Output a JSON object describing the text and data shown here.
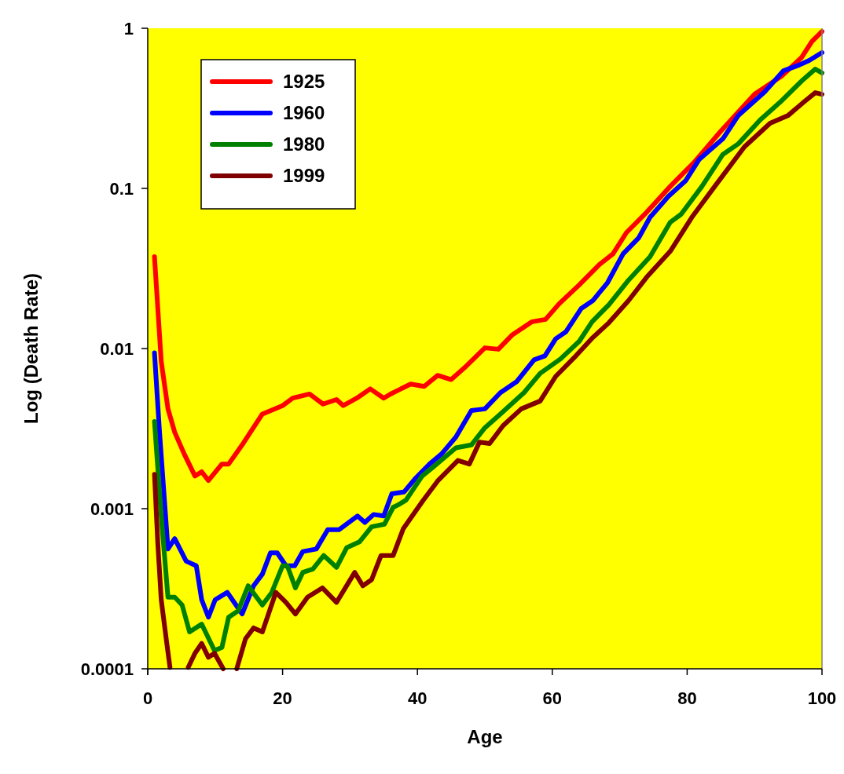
{
  "chart_data": {
    "type": "line",
    "xlabel": "Age",
    "ylabel": "Log (Death Rate)",
    "log": "y",
    "xlim": [
      0,
      100
    ],
    "xticks": [
      0,
      20,
      40,
      60,
      80,
      100
    ],
    "ylim": [
      0.0001,
      1
    ],
    "yticks": [
      0.0001,
      0.001,
      0.01,
      0.1,
      1
    ],
    "grid": false,
    "legend": "top left",
    "marker": "none",
    "line_style": "solid",
    "series": [
      {
        "name": "1925",
        "color": "#ff0000",
        "x": [
          1,
          2,
          3,
          4,
          5.4,
          7,
          8,
          9,
          11,
          12,
          14,
          15,
          17,
          20,
          21.5,
          24,
          26,
          28,
          29,
          31,
          33,
          35,
          36,
          39,
          41,
          43,
          45,
          47,
          50,
          52,
          54,
          57,
          59,
          61,
          64,
          67,
          69,
          71,
          74,
          77.5,
          81,
          85,
          90,
          94,
          97,
          98.5,
          100
        ],
        "values": [
          0.0375,
          0.0083,
          0.0042,
          0.003,
          0.0022,
          0.0016,
          0.0017,
          0.0015,
          0.0019,
          0.0019,
          0.0025,
          0.0029,
          0.0039,
          0.0044,
          0.0049,
          0.0052,
          0.0045,
          0.0048,
          0.0044,
          0.0049,
          0.0056,
          0.0049,
          0.0052,
          0.006,
          0.0058,
          0.0068,
          0.0064,
          0.0076,
          0.0101,
          0.0099,
          0.0121,
          0.0147,
          0.0152,
          0.019,
          0.025,
          0.0335,
          0.039,
          0.053,
          0.071,
          0.103,
          0.145,
          0.228,
          0.387,
          0.502,
          0.659,
          0.826,
          0.955
        ]
      },
      {
        "name": "1960",
        "color": "#0000ff",
        "x": [
          1,
          1.75,
          3,
          4,
          5.7,
          7.2,
          8,
          9,
          10,
          11.8,
          14,
          15.7,
          17,
          18.2,
          19.2,
          20.5,
          21.8,
          23,
          25,
          26.7,
          28.4,
          31.1,
          32.2,
          33.5,
          35,
          36.2,
          38,
          39.6,
          41.8,
          43.6,
          45.7,
          48,
          50,
          52.3,
          54.7,
          57.3,
          58.9,
          60.5,
          62,
          64.3,
          66,
          68.2,
          70.5,
          72.8,
          74.5,
          77.2,
          79.8,
          81.8,
          85.3,
          87.6,
          91.5,
          94.3,
          96.6,
          98.1,
          100
        ],
        "values": [
          0.0094,
          0.003,
          0.00056,
          0.00065,
          0.00047,
          0.00044,
          0.00027,
          0.00021,
          0.00027,
          0.0003,
          0.00022,
          0.00033,
          0.00039,
          0.00053,
          0.00053,
          0.00044,
          0.00044,
          0.00054,
          0.00056,
          0.00074,
          0.00074,
          0.0009,
          0.00082,
          0.00092,
          0.0009,
          0.00124,
          0.00127,
          0.00153,
          0.0019,
          0.0022,
          0.0028,
          0.0041,
          0.0042,
          0.0053,
          0.0062,
          0.0085,
          0.009,
          0.0115,
          0.0127,
          0.0178,
          0.0199,
          0.0258,
          0.039,
          0.049,
          0.066,
          0.089,
          0.112,
          0.152,
          0.204,
          0.286,
          0.401,
          0.543,
          0.589,
          0.63,
          0.705
        ]
      },
      {
        "name": "1980",
        "color": "#008000",
        "x": [
          1,
          2,
          3,
          4,
          5.1,
          6.2,
          8,
          9.9,
          11,
          12,
          13.4,
          14.9,
          17,
          18.4,
          20,
          20.7,
          21.9,
          23,
          24.5,
          26.1,
          28,
          29.5,
          31.4,
          33.2,
          35.1,
          36.4,
          37.2,
          38.3,
          40.7,
          42.2,
          45.7,
          48,
          50,
          52.3,
          55.8,
          58.2,
          61.2,
          64,
          65.9,
          68.4,
          71.3,
          74.5,
          77.5,
          79.1,
          82.2,
          85.3,
          87.6,
          90.8,
          93.8,
          97,
          99,
          100
        ],
        "values": [
          0.0035,
          0.0009,
          0.00028,
          0.00028,
          0.00025,
          0.00017,
          0.00019,
          0.00013,
          0.000136,
          0.00021,
          0.00023,
          0.00033,
          0.00025,
          0.0003,
          0.00044,
          0.00044,
          0.00032,
          0.0004,
          0.00042,
          0.00051,
          0.00043,
          0.00057,
          0.00062,
          0.00077,
          0.0008,
          0.00102,
          0.00106,
          0.00113,
          0.0016,
          0.0018,
          0.0024,
          0.0025,
          0.0032,
          0.0039,
          0.0053,
          0.007,
          0.0086,
          0.0111,
          0.0147,
          0.0188,
          0.0267,
          0.0375,
          0.0615,
          0.0689,
          0.103,
          0.163,
          0.19,
          0.267,
          0.346,
          0.469,
          0.556,
          0.526
        ]
      },
      {
        "name": "1999",
        "color": "#800000",
        "x": [
          1,
          1.5,
          2,
          2.8,
          3.3,
          4.5,
          6,
          7,
          8,
          9,
          9.9,
          11.2,
          12.2,
          13.2,
          14.5,
          15.7,
          17,
          19,
          20.5,
          21.9,
          23.7,
          25.9,
          28,
          30.7,
          31.9,
          33.2,
          34.6,
          36.4,
          37.9,
          40.8,
          43,
          46,
          47.7,
          49.2,
          50.7,
          52.7,
          55.4,
          58.2,
          60.5,
          63.5,
          66,
          68.4,
          71.3,
          74,
          77.5,
          80.7,
          84.1,
          88.5,
          92.3,
          95,
          97.3,
          99,
          100
        ],
        "values": [
          0.00164,
          0.0006,
          0.00027,
          0.000147,
          0.000102,
          null,
          0.000102,
          0.000125,
          0.000144,
          0.000118,
          0.000125,
          0.0001,
          null,
          0.0001,
          0.000154,
          0.00018,
          0.00017,
          0.0003,
          0.00026,
          0.00022,
          0.00028,
          0.00032,
          0.00026,
          0.0004,
          0.00033,
          0.00036,
          0.00051,
          0.00051,
          0.00075,
          0.00112,
          0.00149,
          0.002,
          0.0019,
          0.0026,
          0.00255,
          0.0033,
          0.0042,
          0.0047,
          0.0067,
          0.009,
          0.0117,
          0.0145,
          0.0199,
          0.0279,
          0.0405,
          0.066,
          0.103,
          0.182,
          0.255,
          0.286,
          0.346,
          0.396,
          0.387
        ]
      }
    ]
  }
}
